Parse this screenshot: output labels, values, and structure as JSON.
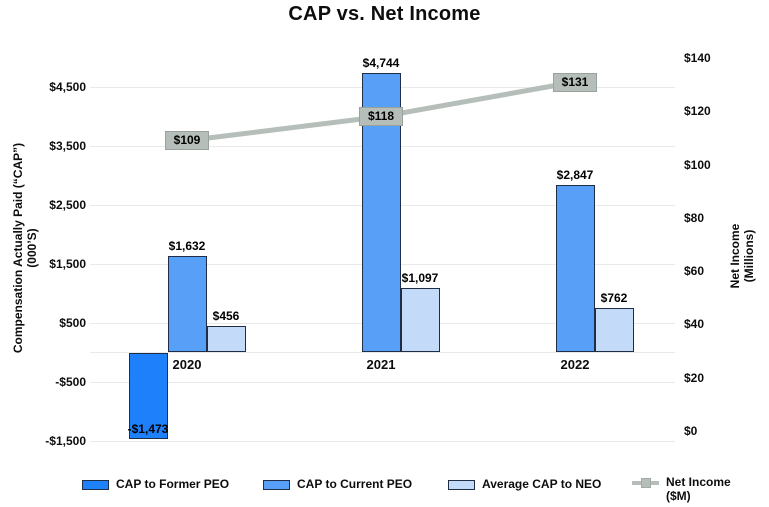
{
  "title": "CAP vs. Net Income",
  "chart_data": {
    "type": "combo_bar_line",
    "categories": [
      "2020",
      "2021",
      "2022"
    ],
    "series": [
      {
        "name": "CAP to Former PEO",
        "chart_type": "bar",
        "axis": "left",
        "color": "#1f80fc",
        "values": [
          -1473,
          null,
          null
        ],
        "data_labels": [
          "-$1,473",
          null,
          null
        ]
      },
      {
        "name": "CAP to Current PEO",
        "chart_type": "bar",
        "axis": "left",
        "color": "#58a0f7",
        "values": [
          1632,
          4744,
          2847
        ],
        "data_labels": [
          "$1,632",
          "$4,744",
          "$2,847"
        ]
      },
      {
        "name": "Average CAP to NEO",
        "chart_type": "bar",
        "axis": "left",
        "color": "#c3dbf9",
        "values": [
          456,
          1097,
          762
        ],
        "data_labels": [
          "$456",
          "$1,097",
          "$762"
        ]
      },
      {
        "name": "Net Income ($M)",
        "chart_type": "line",
        "axis": "right",
        "color": "#b6beba",
        "values": [
          109,
          118,
          131
        ],
        "data_labels": [
          "$109",
          "$118",
          "$131"
        ]
      }
    ],
    "left_axis": {
      "title_line1": "Compensation Actually Paid (“CAP”)",
      "title_line2": "(000’S)",
      "tick_labels": [
        "$4,500",
        "$3,500",
        "$2,500",
        "$1,500",
        "$500",
        "-$500",
        "-$1,500"
      ],
      "tick_values": [
        4500,
        3500,
        2500,
        1500,
        500,
        -500,
        -1500
      ],
      "range": [
        -1500,
        4500
      ]
    },
    "right_axis": {
      "title_line1": "Net Income",
      "title_line2": "(Millions)",
      "tick_labels": [
        "$140",
        "$120",
        "$100",
        "$80",
        "$60",
        "$40",
        "$20",
        "$0"
      ],
      "tick_values": [
        140,
        120,
        100,
        80,
        60,
        40,
        20,
        0
      ],
      "range": [
        0,
        140
      ]
    },
    "grid": "horizontal",
    "legend_position": "bottom"
  },
  "legend": {
    "items": [
      {
        "label": "CAP to Former PEO",
        "swatch_color": "#1f80fc"
      },
      {
        "label": "CAP to Current PEO",
        "swatch_color": "#58a0f7"
      },
      {
        "label": "Average CAP to NEO",
        "swatch_color": "#c3dbf9"
      },
      {
        "label_line1": "Net Income",
        "label_line2": "($M)",
        "swatch_color": "#b6beba"
      }
    ]
  },
  "colors": {
    "bar_border": "#1f2d45",
    "gridline": "#eaeaea",
    "label_box_fill": "#b6beba",
    "label_box_border": "#9aa29e"
  }
}
